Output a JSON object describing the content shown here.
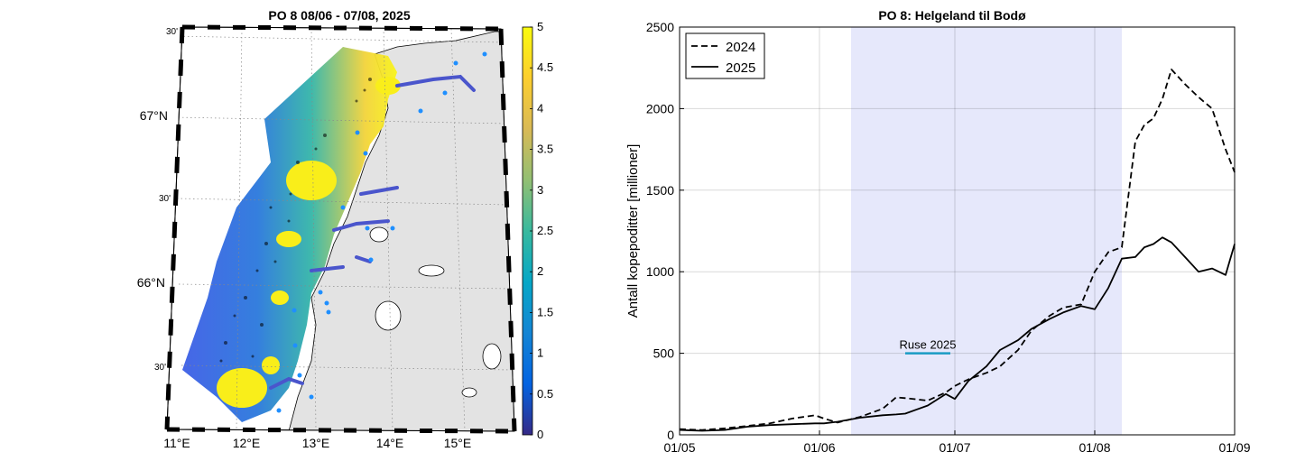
{
  "left_map": {
    "title": "PO 8  08/06 - 07/08, 2025",
    "lat_labels": [
      "30'",
      "67°N",
      "30'",
      "66°N",
      "30'"
    ],
    "lon_labels": [
      "11°E",
      "12°E",
      "13°E",
      "14°E",
      "15°E"
    ],
    "colorbar": {
      "ticks": [
        "5",
        "4.5",
        "4",
        "3.5",
        "3",
        "2.5",
        "2",
        "1.5",
        "1",
        "0.5",
        "0"
      ],
      "range": [
        0,
        5
      ],
      "colormap": "parula",
      "colors": [
        "#352a87",
        "#0363e1",
        "#1485d4",
        "#06a7c6",
        "#38b99e",
        "#92bf73",
        "#d9ba56",
        "#fcce2e",
        "#f9fb0e"
      ]
    },
    "land_color": "#e3e3e3",
    "station_color": "#1f8fff"
  },
  "chart_data": {
    "type": "line",
    "title": "PO 8: Helgeland til Bodø",
    "ylabel": "Antall kopepoditter [millioner]",
    "xlabel": "",
    "xlim": [
      "2025-05-01",
      "2025-09-01"
    ],
    "ylim": [
      0,
      2500
    ],
    "x_ticks": [
      "01/05",
      "01/06",
      "01/07",
      "01/08",
      "01/09"
    ],
    "y_ticks": [
      "0",
      "500",
      "1000",
      "1500",
      "2000",
      "2500"
    ],
    "grid": true,
    "legend_position": "top-left",
    "shaded_period": {
      "start": "2025-06-08",
      "end": "2025-08-07",
      "color": "#e6e8fb"
    },
    "annotation": {
      "text": "Ruse 2025",
      "start": "2025-06-20",
      "end": "2025-06-30",
      "y": 500,
      "color": "#1a9cc4"
    },
    "x": [
      "2025-05-01",
      "2025-05-06",
      "2025-05-11",
      "2025-05-16",
      "2025-05-21",
      "2025-05-26",
      "2025-05-31",
      "2025-06-02",
      "2025-06-05",
      "2025-06-10",
      "2025-06-15",
      "2025-06-18",
      "2025-06-20",
      "2025-06-25",
      "2025-06-29",
      "2025-07-01",
      "2025-07-04",
      "2025-07-08",
      "2025-07-11",
      "2025-07-15",
      "2025-07-18",
      "2025-07-22",
      "2025-07-25",
      "2025-07-29",
      "2025-08-01",
      "2025-08-04",
      "2025-08-07",
      "2025-08-10",
      "2025-08-12",
      "2025-08-14",
      "2025-08-16",
      "2025-08-18",
      "2025-08-21",
      "2025-08-24",
      "2025-08-27",
      "2025-08-30",
      "2025-09-01"
    ],
    "series": [
      {
        "name": "2024",
        "style": "dashed",
        "values": [
          35,
          30,
          40,
          55,
          70,
          100,
          120,
          100,
          75,
          110,
          160,
          230,
          225,
          210,
          260,
          300,
          340,
          380,
          420,
          520,
          640,
          730,
          780,
          800,
          1000,
          1120,
          1150,
          1800,
          1900,
          1940,
          2060,
          2240,
          2150,
          2070,
          2000,
          1750,
          1610
        ]
      },
      {
        "name": "2025",
        "style": "solid",
        "values": [
          30,
          25,
          30,
          50,
          60,
          65,
          70,
          70,
          80,
          105,
          120,
          125,
          130,
          180,
          250,
          220,
          330,
          420,
          520,
          580,
          650,
          710,
          750,
          790,
          770,
          900,
          1080,
          1090,
          1150,
          1170,
          1210,
          1180,
          1090,
          1000,
          1020,
          980,
          1170
        ]
      }
    ]
  }
}
